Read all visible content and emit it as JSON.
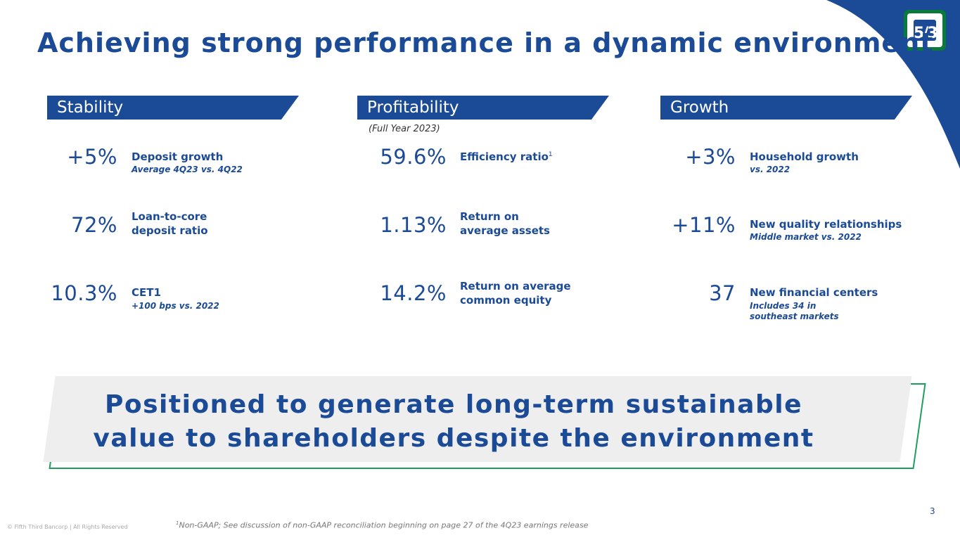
{
  "title": "Achieving strong performance in a dynamic environment",
  "logo": {
    "text": "5/3"
  },
  "columns": [
    {
      "header": "Stability"
    },
    {
      "header": "Profitability",
      "note": "(Full Year 2023)"
    },
    {
      "header": "Growth"
    }
  ],
  "metrics": {
    "stability": [
      {
        "value": "+5%",
        "label": "Deposit growth",
        "sub": "Average 4Q23 vs. 4Q22"
      },
      {
        "value": "72%",
        "label_line1": "Loan-to-core",
        "label_line2": "deposit ratio"
      },
      {
        "value": "10.3%",
        "label": "CET1",
        "sub": "+100 bps vs. 2022"
      }
    ],
    "profitability": [
      {
        "value": "59.6%",
        "label": "Efficiency ratio",
        "sup": "1"
      },
      {
        "value": "1.13%",
        "label_line1": "Return on",
        "label_line2": "average assets"
      },
      {
        "value": "14.2%",
        "label_line1": "Return on average",
        "label_line2": "common equity"
      }
    ],
    "growth": [
      {
        "value": "+3%",
        "label": "Household growth",
        "sub": "vs. 2022"
      },
      {
        "value": "+11%",
        "label": "New quality relationships",
        "sub": "Middle market vs. 2022"
      },
      {
        "value": "37",
        "label": "New financial centers",
        "sub_line1": "Includes 34 in",
        "sub_line2": "southeast markets"
      }
    ]
  },
  "callout": {
    "line1": "Positioned to generate long-term sustainable",
    "line2": "value to shareholders despite the environment"
  },
  "page_number": "3",
  "copyright": "© Fifth Third Bancorp | All Rights Reserved",
  "footnote": {
    "sup": "1",
    "text": "Non-GAAP; See discussion of non-GAAP reconciliation beginning on page 27 of the 4Q23 earnings release"
  },
  "colors": {
    "brand_blue": "#1b4a97",
    "brand_green": "#0a7a3b",
    "callout_bg": "#eeeeee"
  }
}
